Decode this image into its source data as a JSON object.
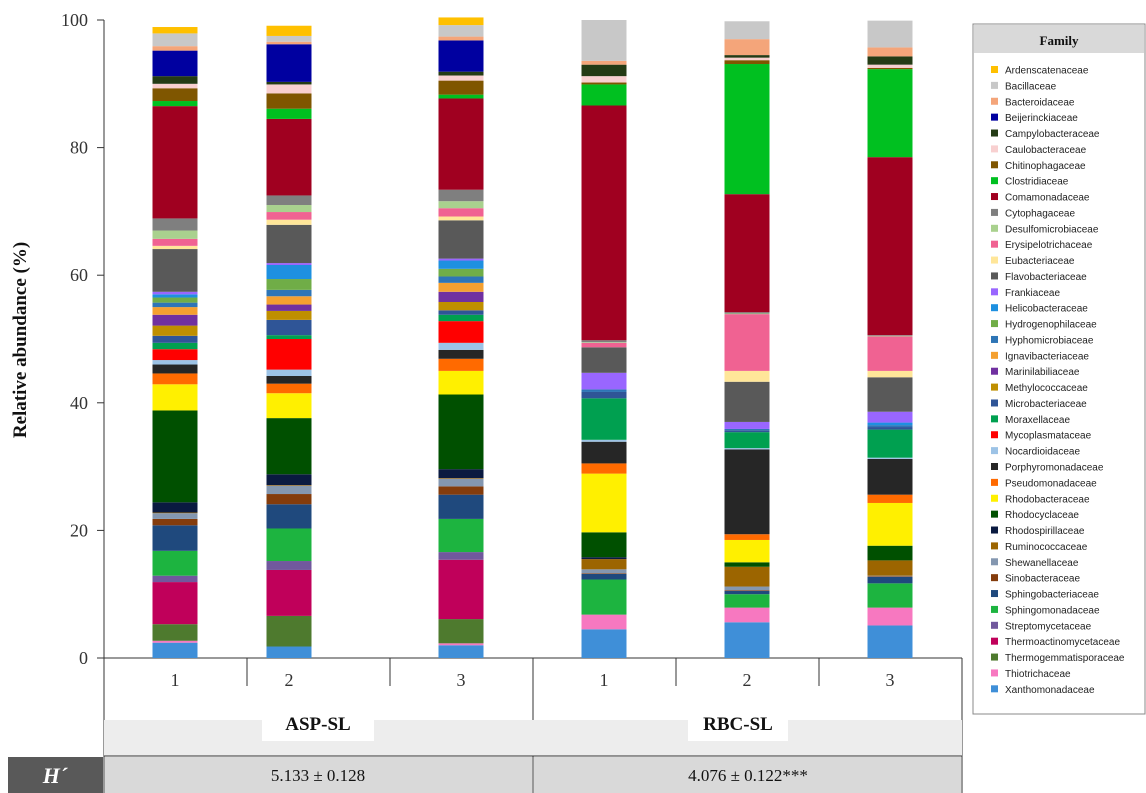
{
  "chart_data": {
    "type": "bar",
    "stacked": true,
    "ylabel": "Relative abundance (%)",
    "xlabel": "",
    "ylim": [
      0,
      100
    ],
    "y_ticks": [
      "0",
      "20",
      "40",
      "60",
      "80",
      "100"
    ],
    "grid": false,
    "legend_placement": "right",
    "legend_title": "Family",
    "categories": [
      "1",
      "2",
      "3",
      "1",
      "2",
      "3"
    ],
    "groups": [
      {
        "label": "ASP-SL",
        "categories": [
          "1",
          "2",
          "3"
        ]
      },
      {
        "label": "RBC-SL",
        "categories": [
          "1",
          "2",
          "3"
        ]
      }
    ],
    "diversity_row": {
      "label": "H´",
      "values": [
        "5.133 ± 0.128",
        "4.076 ± 0.122***"
      ]
    },
    "series": [
      {
        "name": "Ardenscatenaceae",
        "color": "#FFC000",
        "values": [
          1.0,
          1.6,
          1.2,
          0.0,
          0.0,
          0.0
        ]
      },
      {
        "name": "Bacillaceae",
        "color": "#C8C8C8",
        "values": [
          2.0,
          0.9,
          1.8,
          6.4,
          2.8,
          4.2
        ]
      },
      {
        "name": "Bacteroidaceae",
        "color": "#F4A57A",
        "values": [
          0.7,
          0.4,
          0.6,
          0.6,
          2.5,
          1.4
        ]
      },
      {
        "name": "Beijerinckiaceae",
        "color": "#0000A0",
        "values": [
          4.0,
          5.9,
          4.9,
          0.0,
          0.0,
          0.0
        ]
      },
      {
        "name": "Campylobacteraceae",
        "color": "#243B15",
        "values": [
          1.2,
          0.4,
          0.6,
          1.8,
          0.4,
          1.3
        ]
      },
      {
        "name": "Caulobacteraceae",
        "color": "#F8D0D0",
        "values": [
          0.7,
          1.4,
          0.8,
          1.0,
          0.4,
          0.5
        ]
      },
      {
        "name": "Chitinophagaceae",
        "color": "#7F5600",
        "values": [
          2.0,
          2.4,
          2.2,
          0.3,
          0.6,
          0.2
        ]
      },
      {
        "name": "Clostridiaceae",
        "color": "#00C020",
        "values": [
          0.8,
          1.6,
          0.6,
          3.3,
          20.4,
          13.8
        ]
      },
      {
        "name": "Comamonadaceae",
        "color": "#A00020",
        "values": [
          17.6,
          12.0,
          14.3,
          36.8,
          18.5,
          27.9
        ]
      },
      {
        "name": "Cytophagaceae",
        "color": "#7F7F7F",
        "values": [
          1.9,
          1.5,
          1.8,
          0.3,
          0.2,
          0.1
        ]
      },
      {
        "name": "Desulfomicrobiaceae",
        "color": "#A9D18E",
        "values": [
          1.3,
          1.1,
          1.1,
          0.1,
          0.1,
          0.1
        ]
      },
      {
        "name": "Erysipelotrichaceae",
        "color": "#F06292",
        "values": [
          1.1,
          1.2,
          1.3,
          0.7,
          8.9,
          5.4
        ]
      },
      {
        "name": "Eubacteriaceae",
        "color": "#FFE699",
        "values": [
          0.5,
          0.8,
          0.6,
          0.0,
          1.7,
          1.0
        ]
      },
      {
        "name": "Flavobacteriaceae",
        "color": "#595959",
        "values": [
          6.7,
          6.0,
          6.0,
          4.0,
          6.3,
          5.4
        ]
      },
      {
        "name": "Frankiaceae",
        "color": "#9966FF",
        "values": [
          0.4,
          0.3,
          0.3,
          2.6,
          1.1,
          1.7
        ]
      },
      {
        "name": "Helicobacteraceae",
        "color": "#1E90E0",
        "values": [
          0.5,
          2.2,
          1.3,
          0.0,
          0.0,
          0.4
        ]
      },
      {
        "name": "Hydrogenophilaceae",
        "color": "#70AD47",
        "values": [
          0.8,
          1.7,
          1.2,
          0.0,
          0.0,
          0.0
        ]
      },
      {
        "name": "Hyphomicrobiaceae",
        "color": "#2E75B6",
        "values": [
          0.7,
          1.0,
          1.0,
          0.4,
          0.2,
          0.3
        ]
      },
      {
        "name": "Ignavibacteriaceae",
        "color": "#F4A030",
        "values": [
          1.2,
          1.3,
          1.4,
          0.0,
          0.0,
          0.0
        ]
      },
      {
        "name": "Marinilabiliaceae",
        "color": "#7030A0",
        "values": [
          1.7,
          1.0,
          1.6,
          0.0,
          0.0,
          0.0
        ]
      },
      {
        "name": "Methylococcaceae",
        "color": "#BF8F00",
        "values": [
          1.6,
          1.4,
          1.3,
          0.0,
          0.0,
          0.0
        ]
      },
      {
        "name": "Microbacteriaceae",
        "color": "#2F5597",
        "values": [
          1.1,
          2.4,
          0.7,
          1.0,
          0.3,
          0.4
        ]
      },
      {
        "name": "Moraxellaceae",
        "color": "#00A050",
        "values": [
          1.0,
          0.6,
          1.0,
          6.5,
          2.5,
          4.4
        ]
      },
      {
        "name": "Mycoplasmataceae",
        "color": "#FF0000",
        "values": [
          1.7,
          4.8,
          3.4,
          0.0,
          0.0,
          0.0
        ]
      },
      {
        "name": "Nocardioidaceae",
        "color": "#9DC3E6",
        "values": [
          0.7,
          1.0,
          1.1,
          0.3,
          0.2,
          0.2
        ]
      },
      {
        "name": "Porphyromonadaceae",
        "color": "#262626",
        "values": [
          1.4,
          1.2,
          1.4,
          3.4,
          13.3,
          5.6
        ]
      },
      {
        "name": "Pseudomonadaceae",
        "color": "#FF6A00",
        "values": [
          1.7,
          1.5,
          1.9,
          1.6,
          0.9,
          1.3
        ]
      },
      {
        "name": "Rhodobacteraceae",
        "color": "#FFF000",
        "values": [
          4.1,
          3.9,
          3.7,
          9.2,
          3.5,
          6.7
        ]
      },
      {
        "name": "Rhodocyclaceae",
        "color": "#005000",
        "values": [
          14.4,
          8.8,
          11.7,
          3.9,
          0.7,
          2.3
        ]
      },
      {
        "name": "Rhodospirillaceae",
        "color": "#0A1A40",
        "values": [
          1.6,
          1.7,
          1.4,
          0.3,
          0.0,
          0.0
        ]
      },
      {
        "name": "Ruminococcaceae",
        "color": "#9C6500",
        "values": [
          0.1,
          0.1,
          0.1,
          1.6,
          3.1,
          2.4
        ]
      },
      {
        "name": "Shewanellaceae",
        "color": "#8497B0",
        "values": [
          0.9,
          1.3,
          1.2,
          0.6,
          0.6,
          0.1
        ]
      },
      {
        "name": "Sinobacteraceae",
        "color": "#843C0C",
        "values": [
          1.0,
          1.6,
          1.3,
          0.1,
          0.1,
          0.1
        ]
      },
      {
        "name": "Sphingobacteriaceae",
        "color": "#1F497D",
        "values": [
          4.0,
          3.8,
          3.8,
          0.9,
          0.5,
          1.0
        ]
      },
      {
        "name": "Sphingomonadaceae",
        "color": "#1DB440",
        "values": [
          3.9,
          5.1,
          5.2,
          5.5,
          2.1,
          3.8
        ]
      },
      {
        "name": "Streptomycetaceae",
        "color": "#71589D",
        "values": [
          1.0,
          1.4,
          1.2,
          0.0,
          0.0,
          0.0
        ]
      },
      {
        "name": "Thermoactinomycetaceae",
        "color": "#C0005A",
        "values": [
          6.6,
          7.2,
          9.3,
          0.0,
          0.0,
          0.0
        ]
      },
      {
        "name": "Thermogemmatisporaceae",
        "color": "#4E7A2E",
        "values": [
          2.6,
          4.8,
          3.8,
          0.0,
          0.0,
          0.0
        ]
      },
      {
        "name": "Thiotrichaceae",
        "color": "#F778C0",
        "values": [
          0.3,
          0.0,
          0.3,
          2.3,
          2.3,
          2.8
        ]
      },
      {
        "name": "Xanthomonadaceae",
        "color": "#3F8FD8",
        "values": [
          2.4,
          1.8,
          2.0,
          4.5,
          5.6,
          5.1
        ]
      }
    ]
  }
}
